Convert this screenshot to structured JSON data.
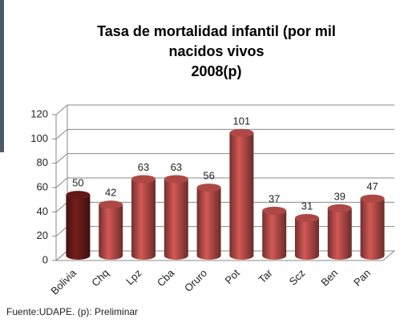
{
  "chart_data": {
    "type": "bar3d",
    "title": [
      "Tasa de mortalidad infantil (por mil",
      "nacidos vivos",
      "2008(p)"
    ],
    "categories": [
      "Bolivia",
      "Chq",
      "Lpz",
      "Cba",
      "Oruro",
      "Pot",
      "Tar",
      "Scz",
      "Ben",
      "Pan"
    ],
    "values": [
      50,
      42,
      63,
      63,
      56,
      101,
      37,
      31,
      39,
      47
    ],
    "colors": [
      "#6e1c1c",
      "#c0504d",
      "#c0504d",
      "#c0504d",
      "#c0504d",
      "#c0504d",
      "#c0504d",
      "#c0504d",
      "#c0504d",
      "#c0504d"
    ],
    "ylim": [
      0,
      120
    ],
    "yticks": [
      0,
      20,
      40,
      60,
      80,
      100,
      120
    ],
    "grid": true,
    "footnote": "Fuente:UDAPE. (p): Preliminar"
  }
}
